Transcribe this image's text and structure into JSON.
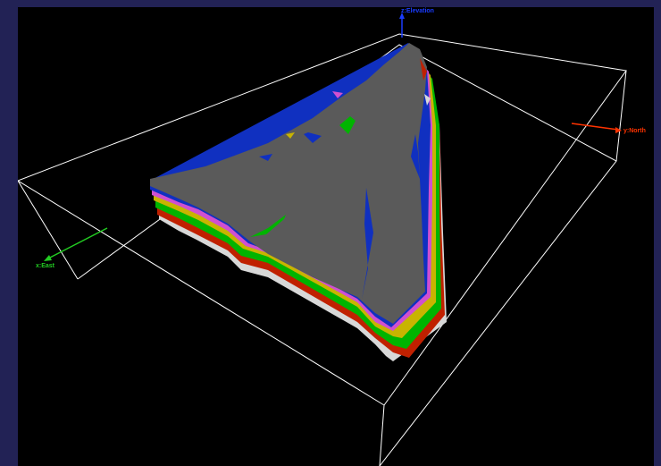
{
  "viewer": {
    "background": "#000000",
    "frame_color": "#222255",
    "bounding_box_color": "#ffffff"
  },
  "axes": {
    "z": {
      "label": "z:Elevation",
      "color": "#1a3cff"
    },
    "y": {
      "label": "y:North",
      "color": "#ff3300"
    },
    "x": {
      "label": "x:East",
      "color": "#22cc22"
    }
  },
  "model": {
    "surface_color": "#5a5a5a",
    "layer_colors": [
      "#1030c0",
      "#d050d0",
      "#c8b400",
      "#00b400",
      "#c02000",
      "#d8d8d8"
    ]
  }
}
